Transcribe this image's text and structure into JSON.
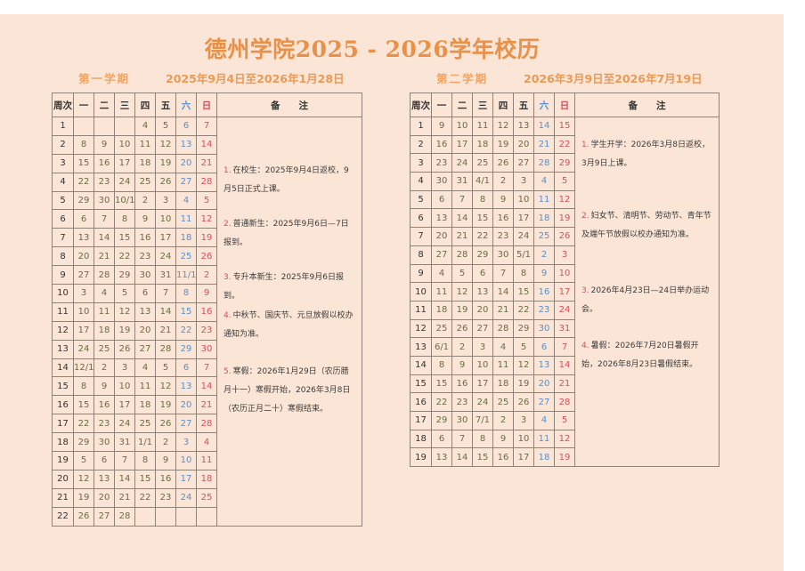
{
  "title": "德州学院2025 - 2026学年校历",
  "headers": [
    "周次",
    "一",
    "二",
    "三",
    "四",
    "五",
    "六",
    "日",
    "备　　注"
  ],
  "colors": {
    "background": "#fbe5d6",
    "title": "#e8914a",
    "weekday": "#6b6b47",
    "saturday": "#5a8fc9",
    "sunday": "#d4505c"
  },
  "semesters": [
    {
      "label": "第一学期",
      "range": "2025年9月4日至2026年1月28日",
      "weeks": [
        [
          "1",
          "",
          "",
          "",
          "4",
          "5",
          "6",
          "7"
        ],
        [
          "2",
          "8",
          "9",
          "10",
          "11",
          "12",
          "13",
          "14"
        ],
        [
          "3",
          "15",
          "16",
          "17",
          "18",
          "19",
          "20",
          "21"
        ],
        [
          "4",
          "22",
          "23",
          "24",
          "25",
          "26",
          "27",
          "28"
        ],
        [
          "5",
          "29",
          "30",
          "10/1",
          "2",
          "3",
          "4",
          "5"
        ],
        [
          "6",
          "6",
          "7",
          "8",
          "9",
          "10",
          "11",
          "12"
        ],
        [
          "7",
          "13",
          "14",
          "15",
          "16",
          "17",
          "18",
          "19"
        ],
        [
          "8",
          "20",
          "21",
          "22",
          "23",
          "24",
          "25",
          "26"
        ],
        [
          "9",
          "27",
          "28",
          "29",
          "30",
          "31",
          "11/1",
          "2"
        ],
        [
          "10",
          "3",
          "4",
          "5",
          "6",
          "7",
          "8",
          "9"
        ],
        [
          "11",
          "10",
          "11",
          "12",
          "13",
          "14",
          "15",
          "16"
        ],
        [
          "12",
          "17",
          "18",
          "19",
          "20",
          "21",
          "22",
          "23"
        ],
        [
          "13",
          "24",
          "25",
          "26",
          "27",
          "28",
          "29",
          "30"
        ],
        [
          "14",
          "12/1",
          "2",
          "3",
          "4",
          "5",
          "6",
          "7"
        ],
        [
          "15",
          "8",
          "9",
          "10",
          "11",
          "12",
          "13",
          "14"
        ],
        [
          "16",
          "15",
          "16",
          "17",
          "18",
          "19",
          "20",
          "21"
        ],
        [
          "17",
          "22",
          "23",
          "24",
          "25",
          "26",
          "27",
          "28"
        ],
        [
          "18",
          "29",
          "30",
          "31",
          "1/1",
          "2",
          "3",
          "4"
        ],
        [
          "19",
          "5",
          "6",
          "7",
          "8",
          "9",
          "10",
          "11"
        ],
        [
          "20",
          "12",
          "13",
          "14",
          "15",
          "16",
          "17",
          "18"
        ],
        [
          "21",
          "19",
          "20",
          "21",
          "22",
          "23",
          "24",
          "25"
        ],
        [
          "22",
          "26",
          "27",
          "28",
          "",
          "",
          "",
          ""
        ]
      ],
      "notes": [
        {
          "num": "1.",
          "text": "在校生：2025年9月4日返校，9月5日正式上课。"
        },
        {
          "num": "2.",
          "text": "普通新生：2025年9月6日—7日报到。"
        },
        {
          "num": "3.",
          "text": "专升本新生：2025年9月6日报到。"
        },
        {
          "num": "4.",
          "text": "中秋节、国庆节、元旦放假以校办通知为准。"
        },
        {
          "num": "5.",
          "text": "寒假：2026年1月29日（农历腊月十一）寒假开始，2026年3月8日（农历正月二十）寒假结束。"
        }
      ]
    },
    {
      "label": "第二学期",
      "range": "2026年3月9日至2026年7月19日",
      "weeks": [
        [
          "1",
          "9",
          "10",
          "11",
          "12",
          "13",
          "14",
          "15"
        ],
        [
          "2",
          "16",
          "17",
          "18",
          "19",
          "20",
          "21",
          "22"
        ],
        [
          "3",
          "23",
          "24",
          "25",
          "26",
          "27",
          "28",
          "29"
        ],
        [
          "4",
          "30",
          "31",
          "4/1",
          "2",
          "3",
          "4",
          "5"
        ],
        [
          "5",
          "6",
          "7",
          "8",
          "9",
          "10",
          "11",
          "12"
        ],
        [
          "6",
          "13",
          "14",
          "15",
          "16",
          "17",
          "18",
          "19"
        ],
        [
          "7",
          "20",
          "21",
          "22",
          "23",
          "24",
          "25",
          "26"
        ],
        [
          "8",
          "27",
          "28",
          "29",
          "30",
          "5/1",
          "2",
          "3"
        ],
        [
          "9",
          "4",
          "5",
          "6",
          "7",
          "8",
          "9",
          "10"
        ],
        [
          "10",
          "11",
          "12",
          "13",
          "14",
          "15",
          "16",
          "17"
        ],
        [
          "11",
          "18",
          "19",
          "20",
          "21",
          "22",
          "23",
          "24"
        ],
        [
          "12",
          "25",
          "26",
          "27",
          "28",
          "29",
          "30",
          "31"
        ],
        [
          "13",
          "6/1",
          "2",
          "3",
          "4",
          "5",
          "6",
          "7"
        ],
        [
          "14",
          "8",
          "9",
          "10",
          "11",
          "12",
          "13",
          "14"
        ],
        [
          "15",
          "15",
          "16",
          "17",
          "18",
          "19",
          "20",
          "21"
        ],
        [
          "16",
          "22",
          "23",
          "24",
          "25",
          "26",
          "27",
          "28"
        ],
        [
          "17",
          "29",
          "30",
          "7/1",
          "2",
          "3",
          "4",
          "5"
        ],
        [
          "18",
          "6",
          "7",
          "8",
          "9",
          "10",
          "11",
          "12"
        ],
        [
          "19",
          "13",
          "14",
          "15",
          "16",
          "17",
          "18",
          "19"
        ]
      ],
      "notes": [
        {
          "num": "1.",
          "text": "学生开学：2026年3月8日返校，3月9日上课。"
        },
        {
          "num": "2.",
          "text": "妇女节、清明节、劳动节、青年节及端午节放假以校办通知为准。"
        },
        {
          "num": "3.",
          "text": "2026年4月23日—24日举办运动会。"
        },
        {
          "num": "4.",
          "text": "暑假：2026年7月20日暑假开始，2026年8月23日暑假结束。"
        }
      ]
    }
  ]
}
